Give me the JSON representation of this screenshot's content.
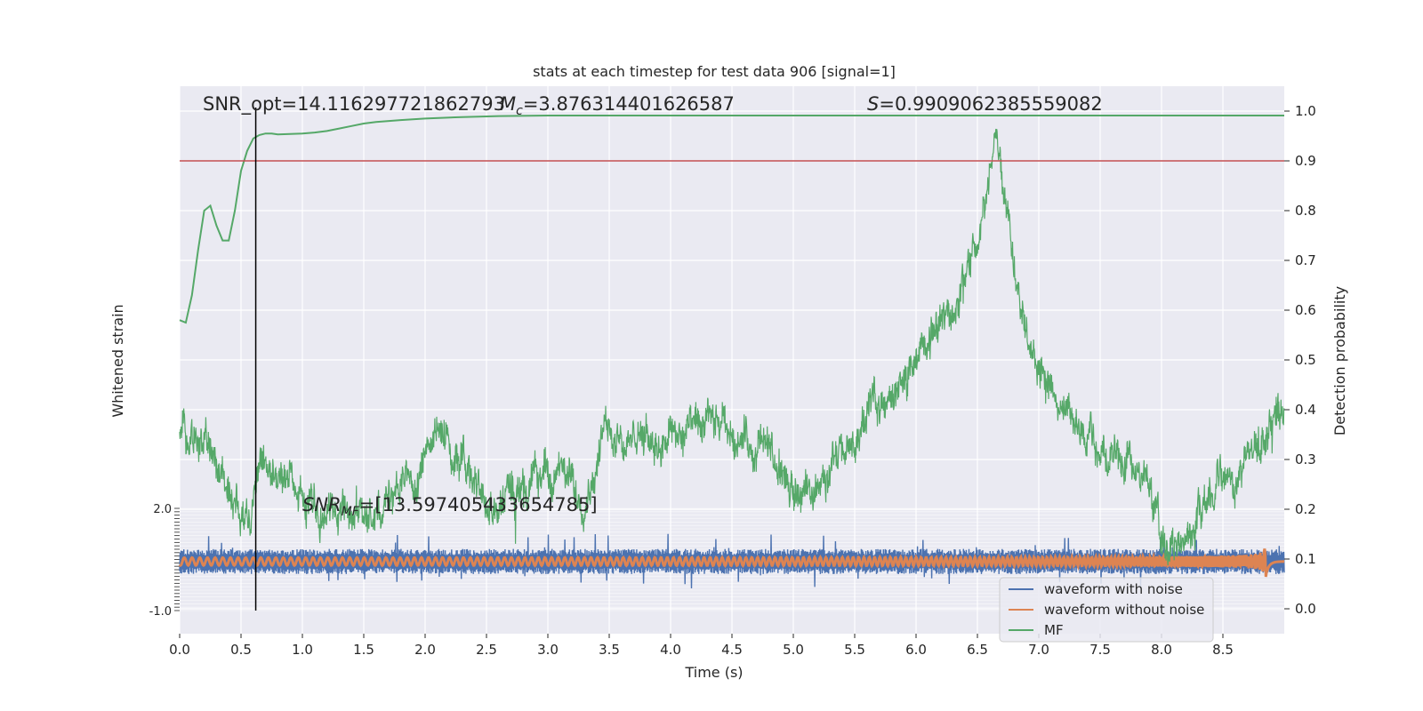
{
  "chart_data": {
    "type": "line",
    "title": "stats at each timestep for test data 906 [signal=1]",
    "xlabel": "Time (s)",
    "ylabel_left": "Whitened strain",
    "ylabel_right": "Detection probability",
    "xlim": [
      0.0,
      9.0
    ],
    "ylim_right": [
      -0.05,
      1.05
    ],
    "ylim_left": [
      -1.0,
      2.0
    ],
    "x_ticks": [
      "0.0",
      "0.5",
      "1.0",
      "1.5",
      "2.0",
      "2.5",
      "3.0",
      "3.5",
      "4.0",
      "4.5",
      "5.0",
      "5.5",
      "6.0",
      "6.5",
      "7.0",
      "7.5",
      "8.0",
      "8.5"
    ],
    "x_tick_values": [
      0,
      0.5,
      1,
      1.5,
      2,
      2.5,
      3,
      3.5,
      4,
      4.5,
      5,
      5.5,
      6,
      6.5,
      7,
      7.5,
      8,
      8.5
    ],
    "y_right_ticks": [
      "0.0",
      "0.1",
      "0.2",
      "0.3",
      "0.4",
      "0.5",
      "0.6",
      "0.7",
      "0.8",
      "0.9",
      "1.0"
    ],
    "y_right_tick_values": [
      0,
      0.1,
      0.2,
      0.3,
      0.4,
      0.5,
      0.6,
      0.7,
      0.8,
      0.9,
      1.0
    ],
    "y_left_top_label": "2.0",
    "y_left_bottom_label": "-1.0",
    "grid": true,
    "legend_position": "lower-right",
    "annotations": {
      "snr_opt": "SNR_opt=14.116297721862793",
      "mc_symbol": "M",
      "mc_sub": "c",
      "mc_value": "=3.876314401626587",
      "s_symbol": "S",
      "s_value": "=0.9909062385559082",
      "snr_mf_symbol": "SNR",
      "snr_mf_sub": "MF",
      "snr_mf_value": "=[13.597405433654785]"
    },
    "threshold": {
      "y": 0.9,
      "color": "#c44e52"
    },
    "vline": {
      "x": 0.62,
      "color": "#000000"
    },
    "series": [
      {
        "name": "waveform with noise",
        "color": "#4c72b0",
        "description_band": {
          "center": 0.095,
          "halfwidth": 0.022
        }
      },
      {
        "name": "waveform without noise",
        "color": "#dd8452",
        "merger_time": 8.85
      },
      {
        "name": "MF",
        "color": "#55a868",
        "x": [
          0.0,
          0.05,
          0.1,
          0.15,
          0.2,
          0.25,
          0.3,
          0.35,
          0.4,
          0.45,
          0.5,
          0.55,
          0.6,
          0.65,
          0.7,
          0.75,
          0.8,
          0.9,
          1.0,
          1.1,
          1.2,
          1.3,
          1.4,
          1.5,
          1.6,
          1.8,
          2.0,
          2.3,
          2.6,
          3.0,
          4.0,
          5.0,
          6.0,
          7.0,
          8.0,
          9.0
        ],
        "y": [
          0.58,
          0.575,
          0.63,
          0.72,
          0.8,
          0.81,
          0.77,
          0.74,
          0.74,
          0.8,
          0.88,
          0.92,
          0.945,
          0.952,
          0.955,
          0.955,
          0.953,
          0.954,
          0.955,
          0.957,
          0.96,
          0.965,
          0.97,
          0.975,
          0.978,
          0.982,
          0.985,
          0.988,
          0.99,
          0.991,
          0.991,
          0.991,
          0.991,
          0.991,
          0.991,
          0.991
        ]
      }
    ],
    "detection_noise_trace": {
      "color": "#55a868",
      "knots_x": [
        0.0,
        0.2,
        0.3,
        0.5,
        0.7,
        0.9,
        1.0,
        1.2,
        1.5,
        1.8,
        2.0,
        2.1,
        2.3,
        2.5,
        2.7,
        3.0,
        3.3,
        3.5,
        3.7,
        4.0,
        4.3,
        4.5,
        4.8,
        5.0,
        5.2,
        5.5,
        5.6,
        5.8,
        6.0,
        6.3,
        6.5,
        6.6,
        6.65,
        6.8,
        7.0,
        7.3,
        7.6,
        7.9,
        8.0,
        8.2,
        8.5,
        8.7,
        9.0
      ],
      "knots_y": [
        0.38,
        0.34,
        0.29,
        0.2,
        0.26,
        0.27,
        0.22,
        0.2,
        0.19,
        0.24,
        0.3,
        0.36,
        0.31,
        0.2,
        0.22,
        0.28,
        0.23,
        0.37,
        0.33,
        0.36,
        0.36,
        0.35,
        0.32,
        0.22,
        0.25,
        0.33,
        0.4,
        0.42,
        0.5,
        0.6,
        0.75,
        0.87,
        0.97,
        0.7,
        0.48,
        0.36,
        0.3,
        0.25,
        0.13,
        0.15,
        0.27,
        0.31,
        0.4
      ]
    }
  }
}
